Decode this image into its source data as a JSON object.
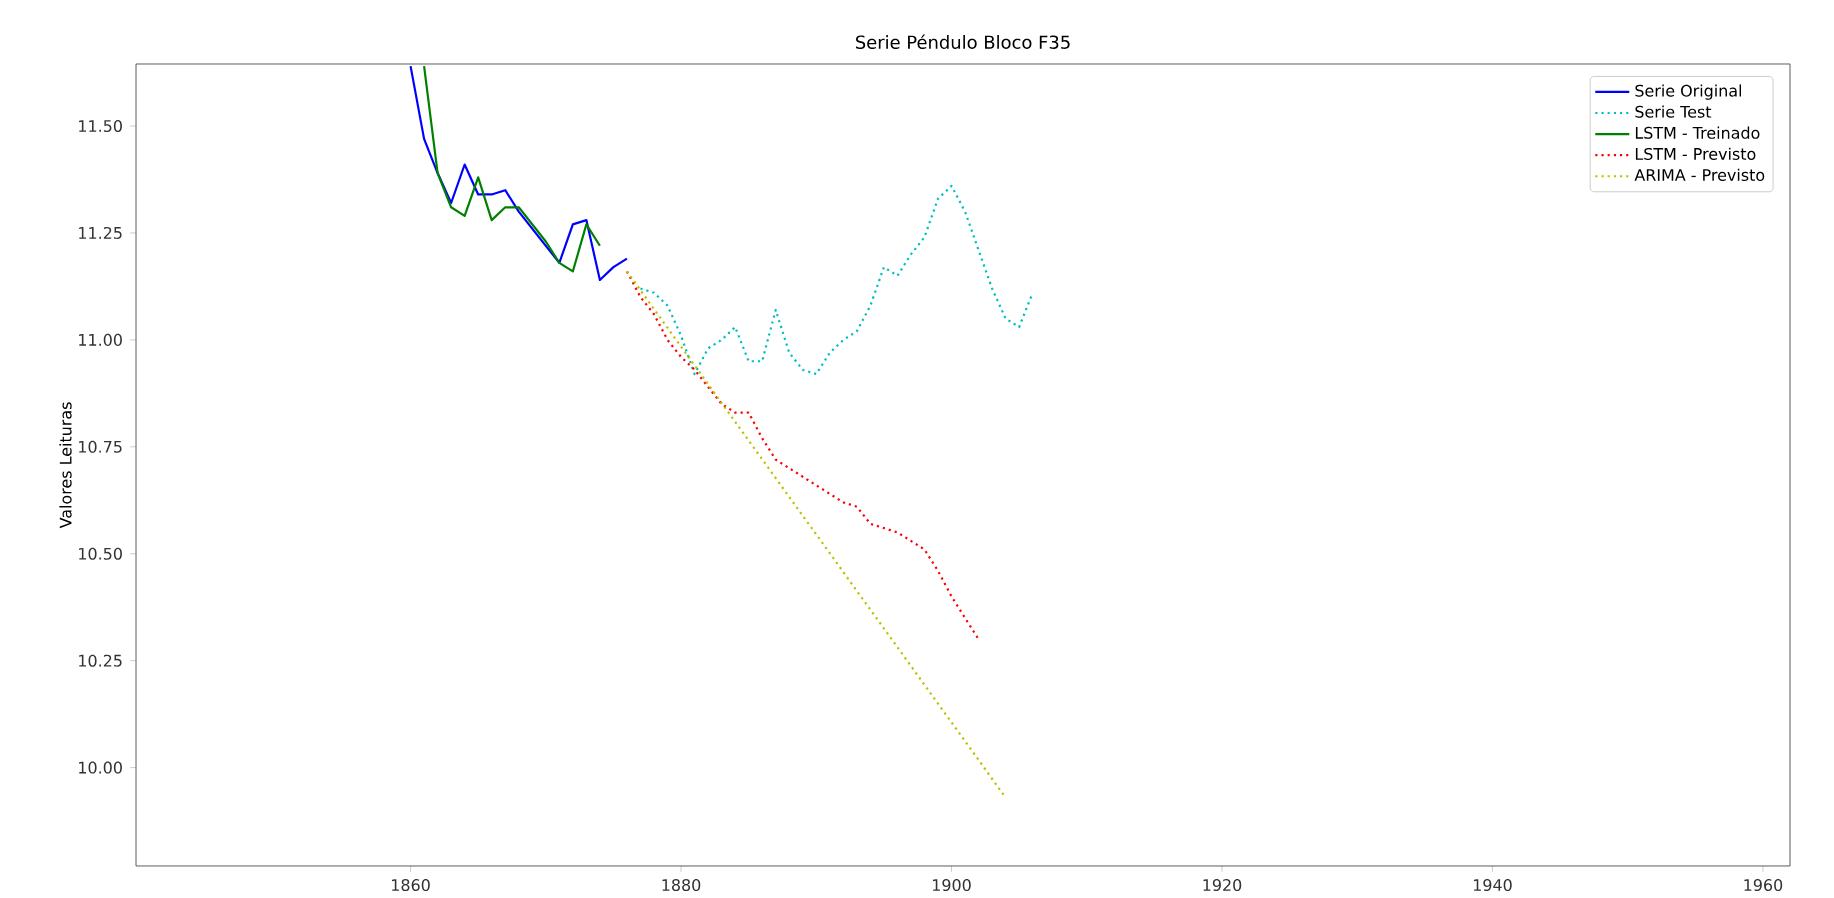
{
  "chart_data": {
    "type": "line",
    "title": "Serie Péndulo Bloco F35",
    "ylabel": "Valores Leituras",
    "xlim": [
      1839.7,
      1962
    ],
    "ylim": [
      9.77,
      11.645
    ],
    "xticks": [
      1860,
      1880,
      1900,
      1920,
      1940,
      1960
    ],
    "yticks": [
      {
        "value": 10,
        "label": "10.00"
      },
      {
        "value": 10.25,
        "label": "10.25"
      },
      {
        "value": 10.5,
        "label": "10.50"
      },
      {
        "value": 10.75,
        "label": "10.75"
      },
      {
        "value": 11,
        "label": "11.00"
      },
      {
        "value": 11.25,
        "label": "11.25"
      },
      {
        "value": 11.5,
        "label": "11.50"
      }
    ],
    "legend": "top right",
    "marker": "none",
    "series": [
      {
        "name": "Serie Original",
        "color": "#0000ff",
        "line_style": "solid",
        "x": [
          1860,
          1861,
          1862,
          1863,
          1864,
          1865,
          1866,
          1867,
          1868,
          1869,
          1870,
          1871,
          1872,
          1873,
          1874,
          1875,
          1876
        ],
        "values": [
          11.64,
          11.47,
          11.39,
          11.32,
          11.41,
          11.34,
          11.34,
          11.35,
          11.3,
          11.26,
          11.22,
          11.18,
          11.27,
          11.28,
          11.14,
          11.17,
          11.19
        ]
      },
      {
        "name": "Serie Test",
        "color": "#00bfbf",
        "line_style": "dotted",
        "x": [
          1877,
          1878,
          1879,
          1880,
          1881,
          1882,
          1883,
          1884,
          1885,
          1886,
          1887,
          1888,
          1889,
          1890,
          1891,
          1892,
          1893,
          1894,
          1895,
          1896,
          1897,
          1898,
          1899,
          1900,
          1901,
          1902,
          1903,
          1904,
          1905,
          1906
        ],
        "values": [
          11.12,
          11.11,
          11.08,
          11.01,
          10.92,
          10.98,
          11.0,
          11.03,
          10.95,
          10.95,
          11.07,
          10.97,
          10.93,
          10.92,
          10.97,
          11.0,
          11.02,
          11.08,
          11.17,
          11.15,
          11.2,
          11.24,
          11.33,
          11.36,
          11.3,
          11.21,
          11.12,
          11.05,
          11.03,
          11.11
        ]
      },
      {
        "name": "LSTM - Treinado",
        "color": "#008000",
        "line_style": "solid",
        "x": [
          1861,
          1862,
          1863,
          1864,
          1865,
          1866,
          1867,
          1868,
          1869,
          1870,
          1871,
          1872,
          1873,
          1874
        ],
        "values": [
          11.64,
          11.39,
          11.31,
          11.29,
          11.38,
          11.28,
          11.31,
          11.31,
          11.27,
          11.23,
          11.18,
          11.16,
          11.27,
          11.22
        ]
      },
      {
        "name": "LSTM - Previsto",
        "color": "#ff0000",
        "line_style": "dotted",
        "x": [
          1876,
          1877,
          1878,
          1879,
          1880,
          1881,
          1882,
          1883,
          1884,
          1885,
          1886,
          1887,
          1888,
          1889,
          1890,
          1891,
          1892,
          1893,
          1894,
          1895,
          1896,
          1897,
          1898,
          1899,
          1900,
          1901,
          1902
        ],
        "values": [
          11.16,
          11.1,
          11.06,
          11.0,
          10.96,
          10.93,
          10.89,
          10.85,
          10.83,
          10.83,
          10.77,
          10.72,
          10.7,
          10.68,
          10.66,
          10.64,
          10.62,
          10.61,
          10.57,
          10.56,
          10.55,
          10.53,
          10.51,
          10.46,
          10.4,
          10.35,
          10.3
        ]
      },
      {
        "name": "ARIMA - Previsto",
        "color": "#bfbf00",
        "line_style": "dotted",
        "x": [
          1876,
          1904
        ],
        "values": [
          11.16,
          9.93
        ]
      }
    ]
  }
}
